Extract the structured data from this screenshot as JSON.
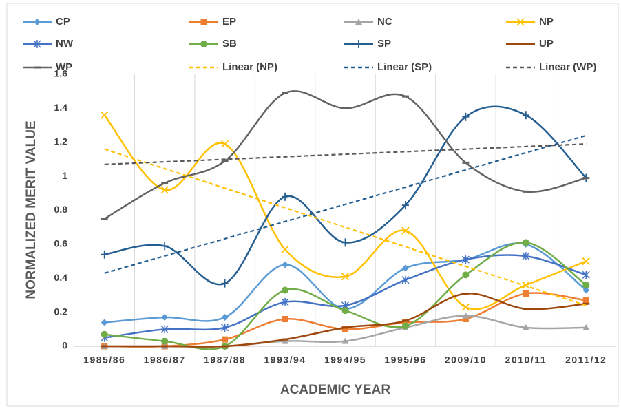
{
  "chart_data": {
    "type": "line",
    "x_label": "ACADEMIC YEAR",
    "y_label": "NORMALIZED MERIT VALUE",
    "categories": [
      "1985/86",
      "1986/87",
      "1987/88",
      "1993/94",
      "1994/95",
      "1995/96",
      "2009/10",
      "2010/11",
      "2011/12"
    ],
    "ylim": [
      0,
      1.6
    ],
    "yticks": [
      0,
      0.2,
      0.4,
      0.6,
      0.8,
      1,
      1.2,
      1.4,
      1.6
    ],
    "grid": "x",
    "smooth": true,
    "legend": "top",
    "series": [
      {
        "name": "CP",
        "color": "#5b9bd5",
        "marker": "diamond",
        "values": [
          0.14,
          0.17,
          0.17,
          0.48,
          0.22,
          0.46,
          0.51,
          0.6,
          0.33
        ]
      },
      {
        "name": "EP",
        "color": "#ed7d31",
        "marker": "square",
        "values": [
          0,
          0,
          0.04,
          0.16,
          0.1,
          0.14,
          0.16,
          0.31,
          0.27
        ]
      },
      {
        "name": "NC",
        "color": "#a5a5a5",
        "marker": "triangle",
        "values": [
          0,
          0,
          0,
          0.03,
          0.03,
          0.11,
          0.18,
          0.11,
          0.11
        ]
      },
      {
        "name": "NP",
        "color": "#ffc000",
        "marker": "x",
        "values": [
          1.36,
          0.92,
          1.19,
          0.57,
          0.41,
          0.68,
          0.23,
          0.36,
          0.5
        ]
      },
      {
        "name": "NW",
        "color": "#4472c4",
        "marker": "star",
        "values": [
          0.05,
          0.1,
          0.11,
          0.26,
          0.24,
          0.39,
          0.51,
          0.53,
          0.42
        ]
      },
      {
        "name": "SB",
        "color": "#70ad47",
        "marker": "circle",
        "values": [
          0.07,
          0.03,
          0,
          0.33,
          0.21,
          0.12,
          0.42,
          0.61,
          0.36
        ]
      },
      {
        "name": "SP",
        "color": "#255e91",
        "marker": "plus",
        "values": [
          0.54,
          0.59,
          0.37,
          0.88,
          0.61,
          0.83,
          1.35,
          1.36,
          0.99
        ]
      },
      {
        "name": "UP",
        "color": "#9e480e",
        "marker": "dash",
        "values": [
          0,
          0,
          0,
          0.04,
          0.11,
          0.15,
          0.31,
          0.22,
          0.25
        ]
      },
      {
        "name": "WP",
        "color": "#636363",
        "marker": "dash",
        "values": [
          0.75,
          0.96,
          1.09,
          1.49,
          1.4,
          1.47,
          1.08,
          0.91,
          0.99
        ]
      }
    ],
    "trendlines": [
      {
        "name": "Linear (NP)",
        "color": "#ffc000",
        "values": [
          1.16,
          0.24
        ]
      },
      {
        "name": "Linear (SP)",
        "color": "#255e91",
        "values": [
          0.43,
          1.24
        ]
      },
      {
        "name": "Linear (WP)",
        "color": "#595959",
        "values": [
          1.07,
          1.19
        ]
      }
    ]
  }
}
